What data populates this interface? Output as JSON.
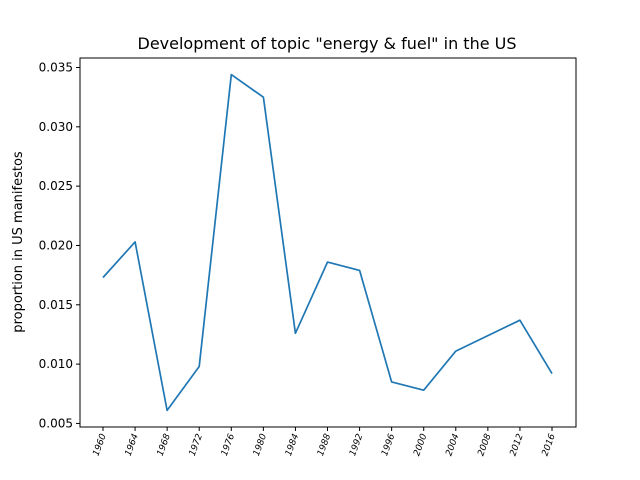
{
  "chart_data": {
    "type": "line",
    "title": "Development of topic \"energy & fuel\" in the US",
    "xlabel": "",
    "ylabel": "proportion in US manifestos",
    "x": [
      "1960",
      "1964",
      "1968",
      "1972",
      "1976",
      "1980",
      "1984",
      "1988",
      "1992",
      "1996",
      "2000",
      "2004",
      "2008",
      "2012",
      "2016"
    ],
    "series": [
      {
        "values": [
          0.0173,
          0.0203,
          0.0061,
          0.0098,
          0.0344,
          0.0325,
          0.0126,
          0.0186,
          0.0179,
          0.0085,
          0.0078,
          0.0111,
          0.0124,
          0.0137,
          0.0092
        ]
      }
    ],
    "ylim": [
      0.0047,
      0.0358
    ],
    "yticks": [
      "0.005",
      "0.010",
      "0.015",
      "0.020",
      "0.025",
      "0.030",
      "0.035"
    ],
    "line_color": "#1f77b4",
    "grid": false,
    "legend": "none"
  }
}
